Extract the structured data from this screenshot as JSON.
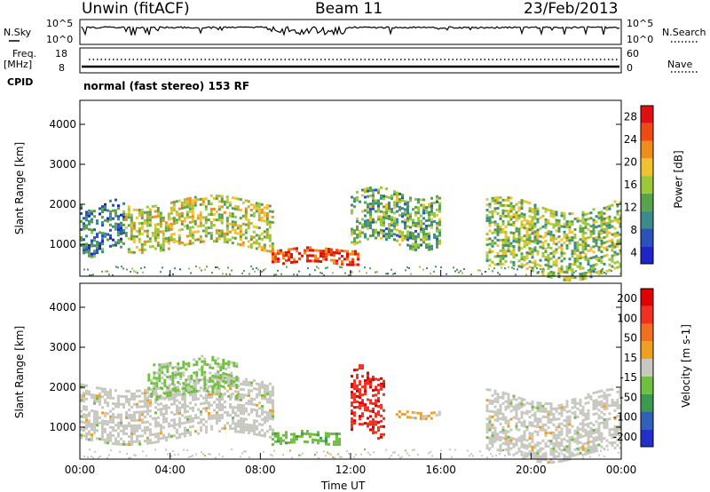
{
  "header": {
    "station": "Unwin (fitACF)",
    "beam": "Beam 11",
    "date": "23/Feb/2013"
  },
  "summary": {
    "nsky_label": "N.Sky",
    "nsky_ticks": [
      "10^5",
      "10^0"
    ],
    "nsearch_label": "N.Search",
    "nsearch_ticks": [
      "10^5",
      "10^0"
    ],
    "freq_label": "Freq.",
    "freq_unit": "[MHz]",
    "freq_ticks": [
      "18",
      "8"
    ],
    "nave_label": "Nave",
    "nave_ticks": [
      "60",
      "0"
    ],
    "cpid_label": "CPID",
    "cpid_text": "normal (fast stereo) 153 RF"
  },
  "chart_data": [
    {
      "type": "heatmap",
      "name": "power",
      "ylabel": "Slant Range [km]",
      "yticks": [
        "4000",
        "3000",
        "2000",
        "1000"
      ],
      "ylim": [
        200,
        4600
      ],
      "xlim": [
        0,
        24
      ],
      "colorbar": {
        "label": "Power [dB]",
        "ticks": [
          "28",
          "24",
          "20",
          "16",
          "12",
          "8",
          "4"
        ],
        "range": [
          0,
          30
        ],
        "colors": [
          "#1f24c8",
          "#2a52b8",
          "#3d8a8a",
          "#5aa24a",
          "#9ac83a",
          "#f2c12e",
          "#f08c1c",
          "#f04a14",
          "#e01010"
        ]
      },
      "bands": [
        {
          "t": [
            0,
            2
          ],
          "r": [
            800,
            2000
          ],
          "level": 8
        },
        {
          "t": [
            2,
            8.5
          ],
          "r": [
            900,
            2100
          ],
          "level": 16
        },
        {
          "t": [
            8.5,
            12.3
          ],
          "r": [
            500,
            900
          ],
          "level": 26
        },
        {
          "t": [
            12,
            16
          ],
          "r": [
            1000,
            2300
          ],
          "level": 12
        },
        {
          "t": [
            18,
            24
          ],
          "r": [
            300,
            2000
          ],
          "level": 14
        }
      ]
    },
    {
      "type": "heatmap",
      "name": "velocity",
      "ylabel": "Slant Range [km]",
      "yticks": [
        "4000",
        "3000",
        "2000",
        "1000"
      ],
      "ylim": [
        200,
        4600
      ],
      "xlim": [
        0,
        24
      ],
      "xlabel": "Time UT",
      "xticks": [
        "00:00",
        "04:00",
        "08:00",
        "12:00",
        "16:00",
        "20:00",
        "00:00"
      ],
      "colorbar": {
        "label": "Velocity [m s-1]",
        "ticks": [
          "200",
          "100",
          "50",
          "15",
          "-15",
          "-50",
          "-100",
          "-200"
        ],
        "range": [
          -250,
          250
        ],
        "colors": [
          "#2030c8",
          "#3060b8",
          "#3a9a50",
          "#70c040",
          "#c8c8c0",
          "#f0a020",
          "#f07020",
          "#f03020",
          "#e00000"
        ]
      },
      "bands": [
        {
          "t": [
            0,
            8.5
          ],
          "r": [
            700,
            2100
          ],
          "level": 0
        },
        {
          "t": [
            3,
            7
          ],
          "r": [
            1800,
            2700
          ],
          "level": -40
        },
        {
          "t": [
            8.5,
            11.5
          ],
          "r": [
            600,
            900
          ],
          "level": -60
        },
        {
          "t": [
            12,
            13.5
          ],
          "r": [
            900,
            2400
          ],
          "level": 180
        },
        {
          "t": [
            14,
            16
          ],
          "r": [
            1200,
            1400
          ],
          "level": 40
        },
        {
          "t": [
            18,
            24
          ],
          "r": [
            300,
            1800
          ],
          "level": 0
        }
      ]
    }
  ]
}
